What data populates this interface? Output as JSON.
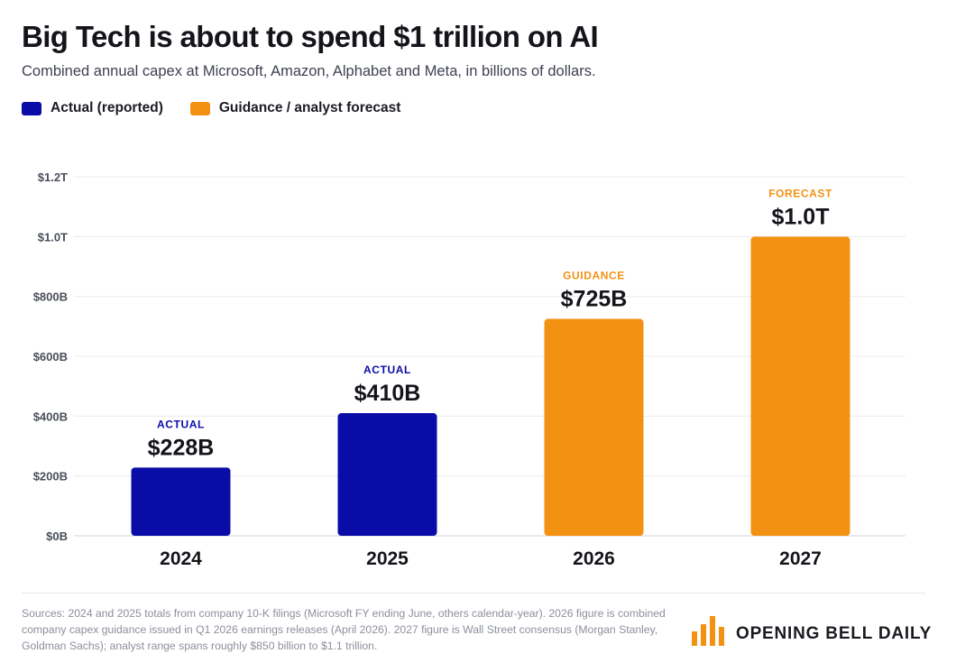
{
  "header": {
    "title": "Big Tech is about to spend $1 trillion on AI",
    "subtitle": "Combined annual capex at Microsoft, Amazon, Alphabet and Meta, in billions of dollars."
  },
  "legend": {
    "items": [
      {
        "label": "Actual (reported)",
        "color": "#0a0ca8"
      },
      {
        "label": "Guidance / analyst forecast",
        "color": "#f39112"
      }
    ]
  },
  "chart_data": {
    "type": "bar",
    "categories": [
      "2024",
      "2025",
      "2026",
      "2027"
    ],
    "values": [
      228,
      410,
      725,
      1000
    ],
    "value_labels": [
      "$228B",
      "$410B",
      "$725B",
      "$1.0T"
    ],
    "status_labels": [
      "ACTUAL",
      "ACTUAL",
      "GUIDANCE",
      "FORECAST"
    ],
    "bar_colors": [
      "#0a0ca8",
      "#0a0ca8",
      "#f39112",
      "#f39112"
    ],
    "status_colors": [
      "#0a0ca8",
      "#0a0ca8",
      "#f39112",
      "#f39112"
    ],
    "ylim": [
      0,
      1200
    ],
    "y_ticks": [
      0,
      200,
      400,
      600,
      800,
      1000,
      1200
    ],
    "y_tick_labels": [
      "$0B",
      "$200B",
      "$400B",
      "$600B",
      "$800B",
      "$1.0T",
      "$1.2T"
    ],
    "grid": true,
    "legend_position": "top-left",
    "xlabel": "",
    "ylabel": ""
  },
  "footer": {
    "sources": "Sources: 2024 and 2025 totals from company 10-K filings (Microsoft FY ending June, others calendar-year). 2026 figure is combined company capex guidance issued in Q1 2026 earnings releases (April 2026). 2027 figure is Wall Street consensus (Morgan Stanley, Goldman Sachs); analyst range spans roughly $850 billion to $1.1 trillion.",
    "brand": "OPENING BELL DAILY",
    "brand_icon": "bar-chart-icon",
    "brand_color": "#f39112"
  }
}
